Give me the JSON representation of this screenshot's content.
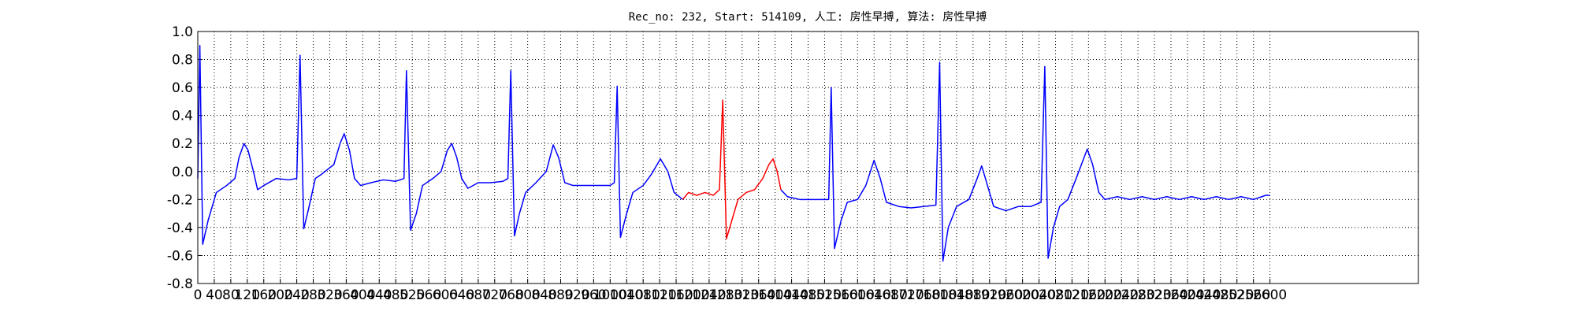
{
  "chart_data": {
    "type": "line",
    "title": "Rec_no: 232, Start: 514109, 人工: 房性早搏, 算法: 房性早搏",
    "xlim": [
      0,
      2960
    ],
    "ylim": [
      -0.8,
      1.0
    ],
    "xticks": [
      0,
      40,
      80,
      120,
      160,
      200,
      240,
      280,
      320,
      360,
      400,
      440,
      480,
      520,
      560,
      600,
      640,
      680,
      720,
      760,
      800,
      840,
      880,
      920,
      960,
      1000,
      1040,
      1080,
      1120,
      1160,
      1200,
      1240,
      1280,
      1320,
      1360,
      1400,
      1440,
      1480,
      1520,
      1560,
      1600,
      1640,
      1680,
      1720,
      1760,
      1800,
      1840,
      1880,
      1920,
      1960,
      2000,
      2040,
      2080,
      2120,
      2160,
      2200,
      2240,
      2280,
      2320,
      2360,
      2400,
      2440,
      2480,
      2520,
      2560,
      2600
    ],
    "yticks": [
      {
        "value": 1,
        "label": "1.0"
      },
      0.8,
      0.6,
      0.4,
      0.2,
      {
        "value": 0,
        "label": "0.0"
      },
      -0.2,
      -0.4,
      -0.6,
      -0.8
    ],
    "grid": true,
    "series": [
      {
        "color": "#0000ff",
        "x": [
          0,
          5,
          12,
          25,
          35,
          45,
          70,
          90,
          100,
          112,
          122,
          135,
          145,
          160,
          190,
          220,
          240,
          248,
          257,
          270,
          285,
          300,
          330,
          345,
          355,
          368,
          380,
          395,
          420,
          450,
          480,
          500,
          506,
          516,
          530,
          545,
          570,
          590,
          605,
          616,
          628,
          640,
          655,
          680,
          710,
          740,
          752,
          759,
          768,
          780,
          795,
          820,
          845,
          862,
          875,
          890,
          910,
          940,
          970,
          1000,
          1010,
          1017,
          1025,
          1040,
          1055,
          1080,
          1100,
          1122,
          1140,
          1155,
          1176,
          1273,
          1414,
          1430,
          1460,
          1490,
          1520,
          1530,
          1536,
          1544,
          1560,
          1575,
          1600,
          1620,
          1640,
          1655,
          1670,
          1700,
          1730,
          1760,
          1790,
          1799,
          1807,
          1820,
          1840,
          1870,
          1890,
          1901,
          1915,
          1930,
          1960,
          1990,
          2020,
          2045,
          2054,
          2062,
          2075,
          2090,
          2110,
          2130,
          2157,
          2170,
          2185,
          2200,
          2230,
          2260,
          2290,
          2320,
          2350,
          2380,
          2410,
          2440,
          2470,
          2500,
          2530,
          2560,
          2590,
          2600
        ],
        "values": [
          -0.05,
          0.9,
          -0.52,
          -0.35,
          -0.25,
          -0.15,
          -0.1,
          -0.05,
          0.1,
          0.2,
          0.15,
          0.0,
          -0.13,
          -0.1,
          -0.05,
          -0.06,
          -0.05,
          0.83,
          -0.41,
          -0.25,
          -0.05,
          -0.02,
          0.05,
          0.2,
          0.27,
          0.15,
          -0.05,
          -0.1,
          -0.08,
          -0.06,
          -0.07,
          -0.05,
          0.72,
          -0.42,
          -0.3,
          -0.1,
          -0.05,
          0.0,
          0.15,
          0.2,
          0.1,
          -0.05,
          -0.12,
          -0.08,
          -0.08,
          -0.07,
          -0.05,
          0.72,
          -0.46,
          -0.3,
          -0.15,
          -0.08,
          0.0,
          0.19,
          0.1,
          -0.08,
          -0.1,
          -0.1,
          -0.1,
          -0.1,
          -0.08,
          0.61,
          -0.47,
          -0.3,
          -0.15,
          -0.1,
          -0.02,
          0.09,
          0.0,
          -0.15,
          -0.2,
          null,
          -0.13,
          -0.18,
          -0.2,
          -0.2,
          -0.2,
          -0.2,
          0.6,
          -0.55,
          -0.35,
          -0.22,
          -0.2,
          -0.1,
          0.08,
          -0.05,
          -0.22,
          -0.25,
          -0.26,
          -0.25,
          -0.24,
          0.78,
          -0.64,
          -0.4,
          -0.25,
          -0.2,
          -0.05,
          0.04,
          -0.1,
          -0.25,
          -0.28,
          -0.25,
          -0.25,
          -0.22,
          0.75,
          -0.62,
          -0.4,
          -0.25,
          -0.2,
          -0.05,
          0.16,
          0.05,
          -0.15,
          -0.2,
          -0.18,
          -0.2,
          -0.18,
          -0.2,
          -0.18,
          -0.2,
          -0.18,
          -0.2,
          -0.18,
          -0.2,
          -0.18,
          -0.2,
          -0.17,
          -0.17
        ]
      },
      {
        "color": "#ff0000",
        "x": [
          1176,
          1190,
          1210,
          1230,
          1250,
          1265,
          1273,
          1282,
          1295,
          1310,
          1330,
          1350,
          1370,
          1385,
          1395,
          1405,
          1414
        ],
        "values": [
          -0.2,
          -0.15,
          -0.17,
          -0.15,
          -0.17,
          -0.13,
          0.51,
          -0.48,
          -0.35,
          -0.2,
          -0.15,
          -0.13,
          -0.05,
          0.05,
          0.09,
          0.0,
          -0.13
        ]
      }
    ]
  }
}
